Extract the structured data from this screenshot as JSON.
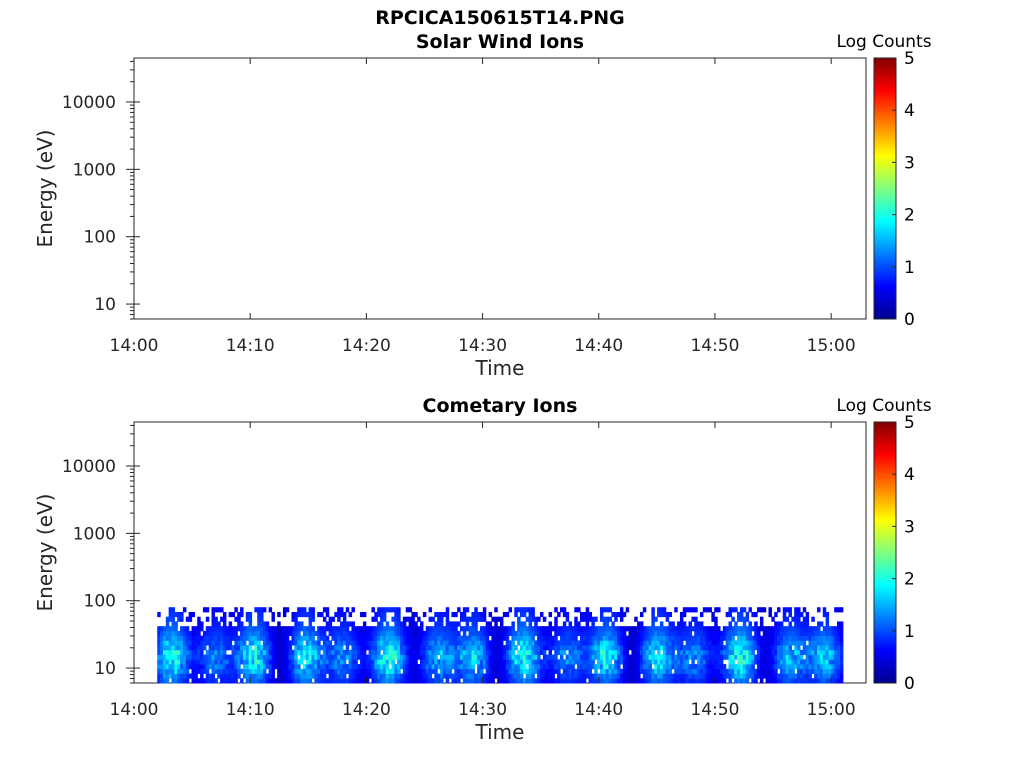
{
  "figure_title": "RPCICA150615T14.PNG",
  "chart_data": [
    {
      "type": "heatmap",
      "title": "Solar Wind Ions",
      "xlabel": "Time",
      "ylabel": "Energy (eV)",
      "x_ticks": [
        "14:00",
        "14:10",
        "14:20",
        "14:30",
        "14:40",
        "14:50",
        "15:00"
      ],
      "y_ticks": [
        "10",
        "100",
        "1000",
        "10000"
      ],
      "y_scale": "log",
      "xlim": [
        "14:00",
        "15:03"
      ],
      "ylim": [
        6,
        45000
      ],
      "colorbar": {
        "label": "Log Counts",
        "ticks": [
          "0",
          "1",
          "2",
          "3",
          "4",
          "5"
        ],
        "range": [
          0,
          5
        ],
        "colormap": "jet"
      },
      "data_extent": null,
      "grid": false
    },
    {
      "type": "heatmap",
      "title": "Cometary Ions",
      "xlabel": "Time",
      "ylabel": "Energy (eV)",
      "x_ticks": [
        "14:00",
        "14:10",
        "14:20",
        "14:30",
        "14:40",
        "14:50",
        "15:00"
      ],
      "y_ticks": [
        "10",
        "100",
        "1000",
        "10000"
      ],
      "y_scale": "log",
      "xlim": [
        "14:00",
        "15:03"
      ],
      "ylim": [
        6,
        45000
      ],
      "colorbar": {
        "label": "Log Counts",
        "ticks": [
          "0",
          "1",
          "2",
          "3",
          "4",
          "5"
        ],
        "range": [
          0,
          5
        ],
        "colormap": "jet"
      },
      "data_extent": {
        "time_start": "14:02",
        "time_end": "15:01",
        "energy_min": 6,
        "energy_max": 80
      },
      "peak_log_counts": 2.2,
      "grid": false
    }
  ]
}
